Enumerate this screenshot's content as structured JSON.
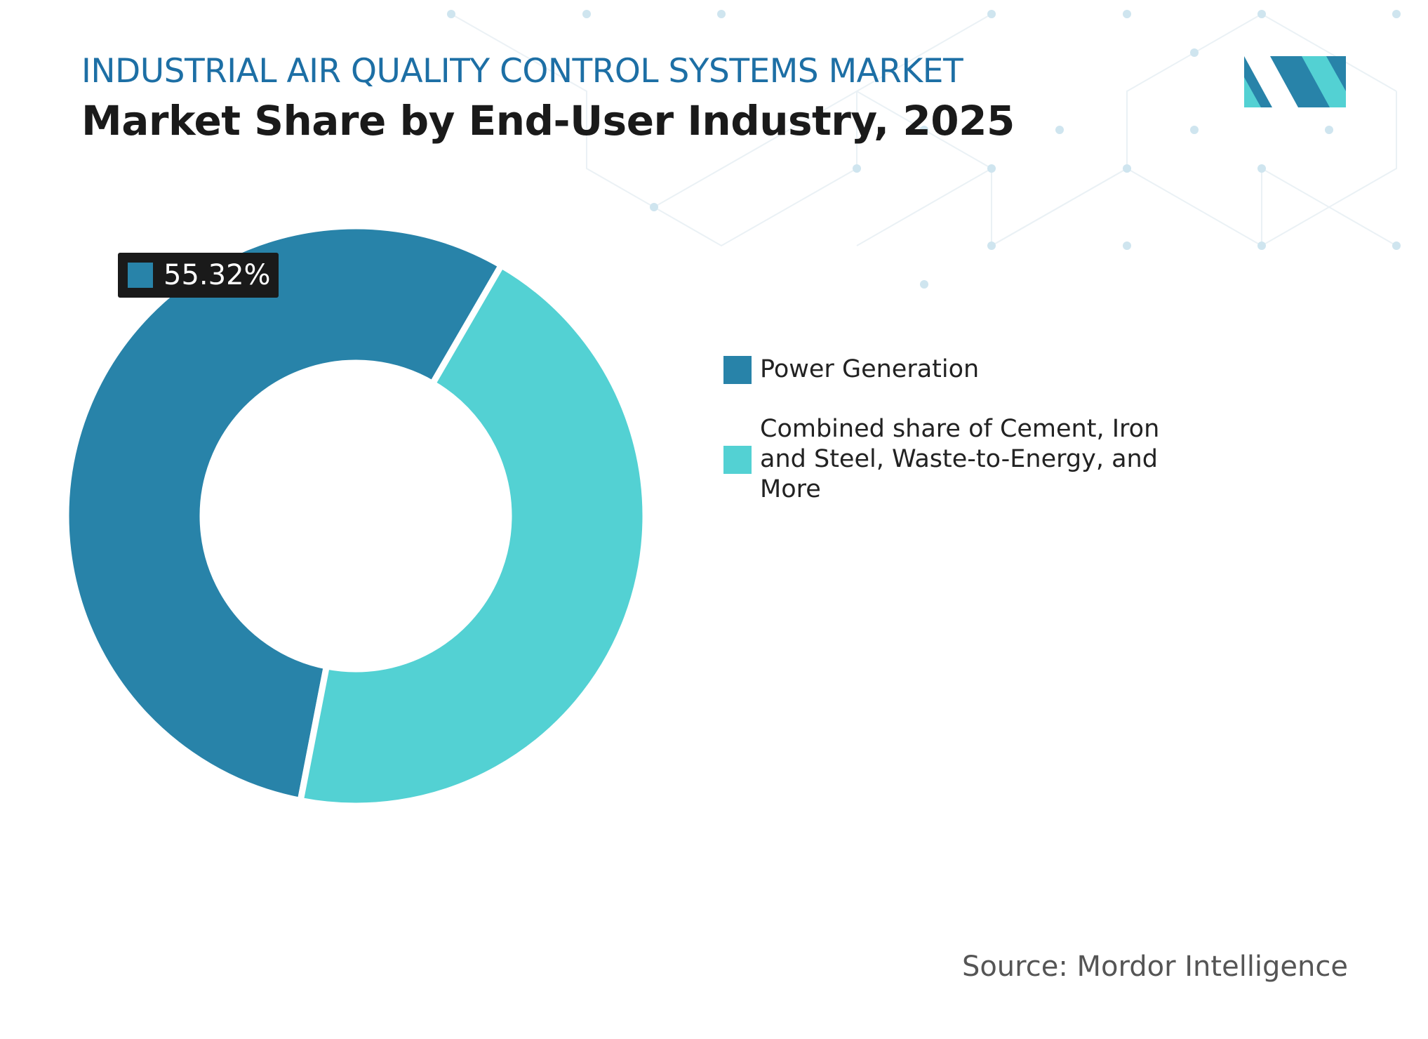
{
  "chart_data": {
    "type": "donut",
    "title": "INDUSTRIAL AIR QUALITY CONTROL SYSTEMS MARKET",
    "subtitle": "Market Share by End-User Industry, 2025",
    "categories": [
      "Power Generation",
      "Combined share of Cement, Iron and Steel, Waste-to-Energy, and More"
    ],
    "values": [
      55.32,
      44.68
    ],
    "value_labels": [
      "55.32%",
      null
    ],
    "colors": [
      "#2883a9",
      "#53d1d3"
    ],
    "source": "Source: Mordor Intelligence"
  }
}
